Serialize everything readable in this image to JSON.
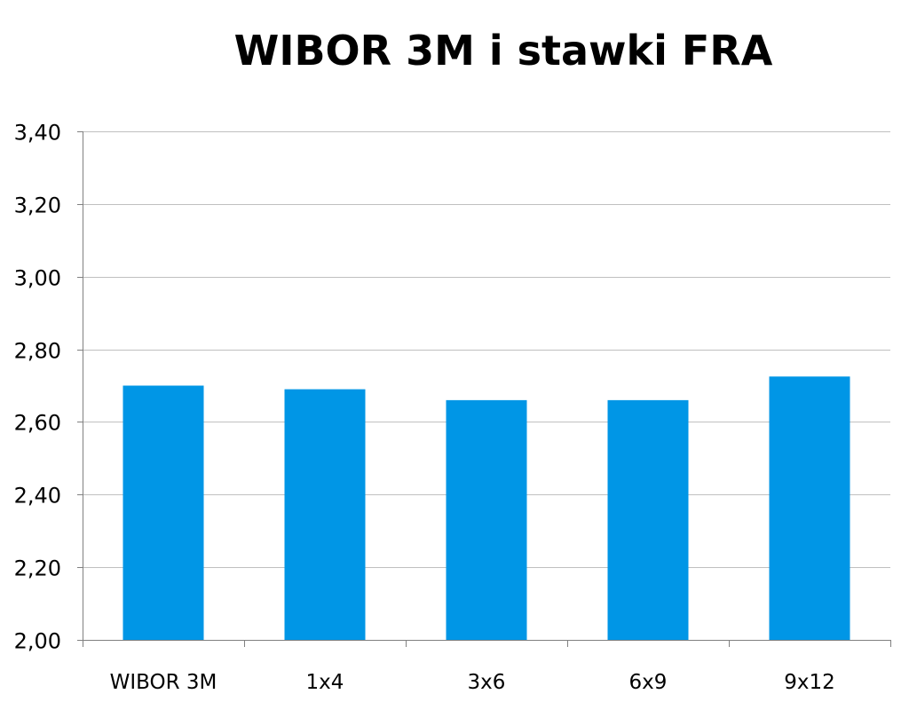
{
  "chart_data": {
    "type": "bar",
    "title": "WIBOR 3M i stawki FRA",
    "categories": [
      "WIBOR 3M",
      "1x4",
      "3x6",
      "6x9",
      "9x12"
    ],
    "values": [
      2.7,
      2.69,
      2.66,
      2.66,
      2.725
    ],
    "ylim": [
      2.0,
      3.4
    ],
    "yticks": [
      "2,00",
      "2,20",
      "2,40",
      "2,60",
      "2,80",
      "3,00",
      "3,20",
      "3,40"
    ],
    "ytick_values": [
      2.0,
      2.2,
      2.4,
      2.6,
      2.8,
      3.0,
      3.2,
      3.4
    ],
    "grid": true,
    "legend": "none",
    "bar_color": "#0096e6",
    "grid_color": "#c0c0c0"
  }
}
